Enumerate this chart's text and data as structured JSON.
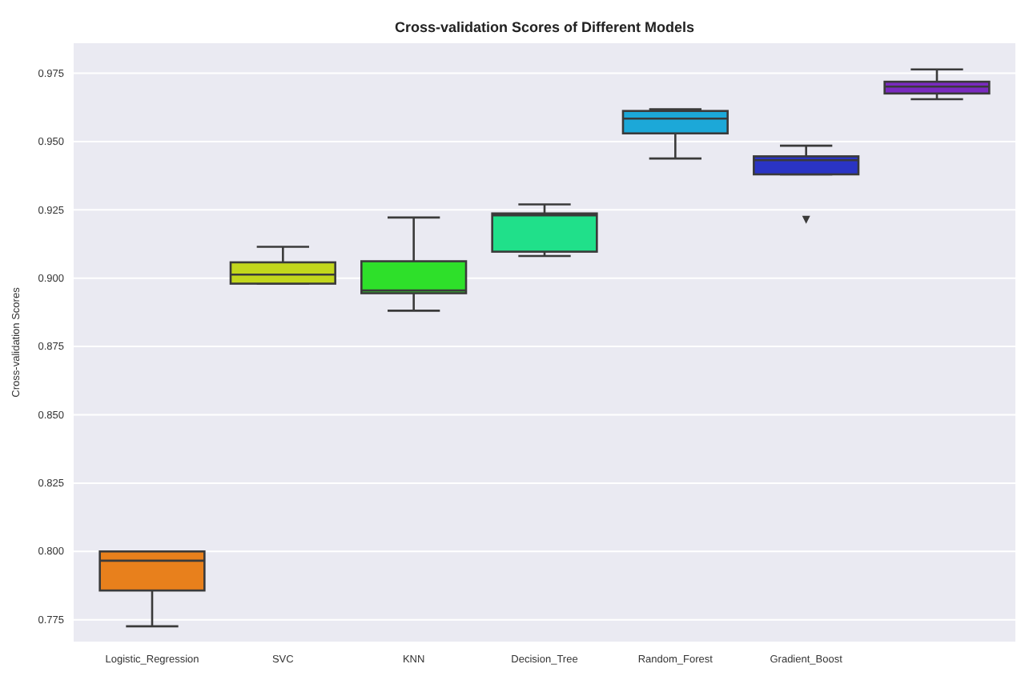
{
  "chart_data": {
    "type": "box",
    "title": "Cross-validation Scores of Different Models",
    "ylabel": "Cross-validation Scores",
    "categories": [
      "Logistic_Regression",
      "SVC",
      "KNN",
      "Decision_Tree",
      "Random_Forest",
      "Gradient_Boost",
      null
    ],
    "colors": [
      "#e8801c",
      "#c2d61c",
      "#2ee02a",
      "#20e08a",
      "#1ca8d8",
      "#2a34c4",
      "#7a2ac0"
    ],
    "boxes": [
      {
        "low": 0.7726,
        "q1": 0.7857,
        "median": 0.7966,
        "q3": 0.8,
        "high": 0.8
      },
      {
        "low": 0.898,
        "q1": 0.898,
        "median": 0.9013,
        "q3": 0.9058,
        "high": 0.9115
      },
      {
        "low": 0.8881,
        "q1": 0.8945,
        "median": 0.8955,
        "q3": 0.9062,
        "high": 0.9222
      },
      {
        "low": 0.9081,
        "q1": 0.9097,
        "median": 0.923,
        "q3": 0.9237,
        "high": 0.927
      },
      {
        "low": 0.9438,
        "q1": 0.953,
        "median": 0.9584,
        "q3": 0.9612,
        "high": 0.9618
      },
      {
        "low": 0.938,
        "q1": 0.938,
        "median": 0.9432,
        "q3": 0.9446,
        "high": 0.9485,
        "outliers": [
          0.9214
        ]
      },
      {
        "low": 0.9655,
        "q1": 0.9676,
        "median": 0.9701,
        "q3": 0.9719,
        "high": 0.9764
      }
    ],
    "ylim": [
      0.767,
      0.986
    ],
    "yticks": [
      0.775,
      {
        "value": 0.8,
        "label": "0.800"
      },
      0.825,
      {
        "value": 0.85,
        "label": "0.850"
      },
      0.875,
      {
        "value": 0.9,
        "label": "0.900"
      },
      0.925,
      {
        "value": 0.95,
        "label": "0.950"
      },
      0.975
    ],
    "grid": "y"
  }
}
